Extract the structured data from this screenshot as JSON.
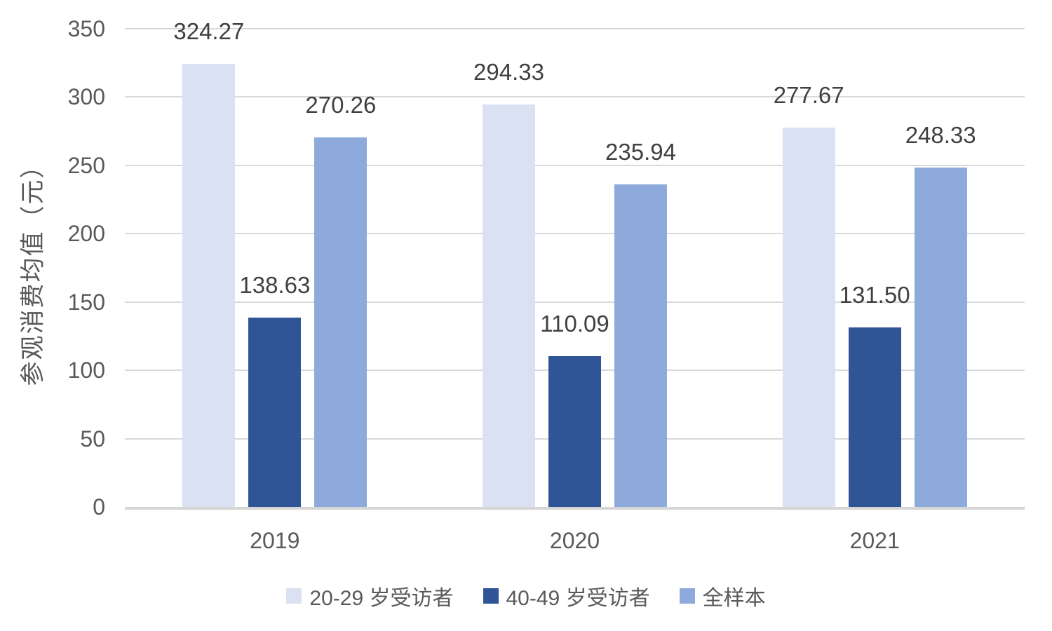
{
  "chart_data": {
    "type": "bar",
    "title": "",
    "ylabel": "参观消费均值（元）",
    "xlabel": "",
    "categories": [
      "2019",
      "2020",
      "2021"
    ],
    "series": [
      {
        "name": "20-29 岁受访者",
        "color": "#D9E1F2",
        "values": [
          324.27,
          294.33,
          277.67
        ]
      },
      {
        "name": "40-49 岁受访者",
        "color": "#2F5597",
        "values": [
          138.63,
          110.09,
          131.5
        ]
      },
      {
        "name": "全样本",
        "color": "#8EA9DB",
        "values": [
          270.26,
          235.94,
          248.33
        ]
      }
    ],
    "ylim": [
      0,
      350
    ],
    "yticks": [
      0,
      50,
      100,
      150,
      200,
      250,
      300,
      350
    ],
    "grid": true,
    "legend_position": "bottom",
    "value_label_decimals": 2
  },
  "colors": {
    "axis_text": "#595959",
    "data_label": "#404040",
    "gridline": "#D9D9D9",
    "axis_line": "#D6D6D6",
    "background": "#FFFFFF"
  }
}
